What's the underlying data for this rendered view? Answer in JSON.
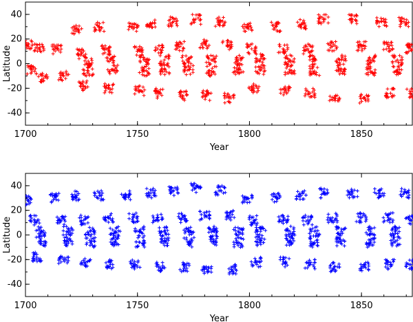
{
  "chart_data": [
    {
      "type": "scatter",
      "marker": "plus",
      "color": "#ff0000",
      "title": "",
      "xlabel": "Year",
      "ylabel": "Latitude",
      "xlim": [
        1700,
        1873
      ],
      "ylim": [
        -50,
        50
      ],
      "x_ticks": [
        1700,
        1750,
        1800,
        1850
      ],
      "y_ticks": [
        -40,
        -20,
        0,
        20,
        40
      ],
      "x_tick_labels": [
        "1700",
        "1750",
        "1800",
        "1850"
      ],
      "y_tick_labels": [
        "-40",
        "-20",
        "0",
        "20",
        "40"
      ],
      "grid": false,
      "legend": "none",
      "series": [
        {
          "points": [
            [
              1701,
              15
            ],
            [
              1703,
              -5
            ],
            [
              1706,
              12
            ],
            [
              1708,
              -12
            ],
            [
              1714,
              12
            ],
            [
              1717,
              -10
            ],
            [
              1723,
              28
            ],
            [
              1725,
              8
            ],
            [
              1726,
              -18
            ],
            [
              1728,
              2
            ],
            [
              1728,
              -6
            ],
            [
              1733,
              30
            ],
            [
              1736,
              12
            ],
            [
              1737,
              -20
            ],
            [
              1738,
              4
            ],
            [
              1739,
              -5
            ],
            [
              1748,
              30
            ],
            [
              1750,
              10
            ],
            [
              1751,
              -22
            ],
            [
              1753,
              3
            ],
            [
              1753,
              -6
            ],
            [
              1756,
              32
            ],
            [
              1759,
              12
            ],
            [
              1760,
              -24
            ],
            [
              1762,
              3
            ],
            [
              1762,
              -5
            ],
            [
              1766,
              34
            ],
            [
              1769,
              14
            ],
            [
              1770,
              -26
            ],
            [
              1772,
              3
            ],
            [
              1773,
              -5
            ],
            [
              1776,
              36
            ],
            [
              1780,
              16
            ],
            [
              1781,
              -26
            ],
            [
              1783,
              3
            ],
            [
              1783,
              -6
            ],
            [
              1787,
              34
            ],
            [
              1790,
              15
            ],
            [
              1791,
              -28
            ],
            [
              1795,
              3
            ],
            [
              1795,
              -5
            ],
            [
              1799,
              30
            ],
            [
              1801,
              12
            ],
            [
              1802,
              -20
            ],
            [
              1805,
              4
            ],
            [
              1805,
              -5
            ],
            [
              1812,
              30
            ],
            [
              1815,
              12
            ],
            [
              1816,
              -22
            ],
            [
              1818,
              3
            ],
            [
              1818,
              -5
            ],
            [
              1823,
              32
            ],
            [
              1826,
              12
            ],
            [
              1827,
              -24
            ],
            [
              1829,
              3
            ],
            [
              1829,
              -6
            ],
            [
              1833,
              36
            ],
            [
              1837,
              14
            ],
            [
              1838,
              -28
            ],
            [
              1841,
              3
            ],
            [
              1841,
              -5
            ],
            [
              1846,
              36
            ],
            [
              1850,
              14
            ],
            [
              1851,
              -28
            ],
            [
              1854,
              3
            ],
            [
              1854,
              -6
            ],
            [
              1859,
              34
            ],
            [
              1862,
              14
            ],
            [
              1863,
              -24
            ],
            [
              1866,
              3
            ],
            [
              1866,
              -5
            ],
            [
              1869,
              34
            ],
            [
              1872,
              12
            ],
            [
              1872,
              -24
            ]
          ]
        }
      ]
    },
    {
      "type": "scatter",
      "marker": "plus",
      "color": "#0000ff",
      "title": "",
      "xlabel": "Year",
      "ylabel": "Latitude",
      "xlim": [
        1700,
        1873
      ],
      "ylim": [
        -50,
        50
      ],
      "x_ticks": [
        1700,
        1750,
        1800,
        1850
      ],
      "y_ticks": [
        -40,
        -20,
        0,
        20,
        40
      ],
      "x_tick_labels": [
        "1700",
        "1750",
        "1800",
        "1850"
      ],
      "y_tick_labels": [
        "-40",
        "-20",
        "0",
        "20",
        "40"
      ],
      "grid": false,
      "legend": "none",
      "series": [
        {
          "points": [
            [
              1701,
              28
            ],
            [
              1704,
              12
            ],
            [
              1705,
              -18
            ],
            [
              1707,
              3
            ],
            [
              1707,
              -5
            ],
            [
              1713,
              30
            ],
            [
              1716,
              12
            ],
            [
              1717,
              -20
            ],
            [
              1719,
              3
            ],
            [
              1719,
              -5
            ],
            [
              1723,
              32
            ],
            [
              1726,
              12
            ],
            [
              1727,
              -22
            ],
            [
              1729,
              3
            ],
            [
              1729,
              -6
            ],
            [
              1733,
              32
            ],
            [
              1737,
              14
            ],
            [
              1738,
              -24
            ],
            [
              1740,
              3
            ],
            [
              1740,
              -5
            ],
            [
              1745,
              32
            ],
            [
              1748,
              14
            ],
            [
              1749,
              -24
            ],
            [
              1751,
              3
            ],
            [
              1751,
              -6
            ],
            [
              1756,
              34
            ],
            [
              1759,
              14
            ],
            [
              1760,
              -26
            ],
            [
              1762,
              3
            ],
            [
              1762,
              -5
            ],
            [
              1766,
              36
            ],
            [
              1770,
              14
            ],
            [
              1771,
              -26
            ],
            [
              1773,
              3
            ],
            [
              1773,
              -6
            ],
            [
              1776,
              38
            ],
            [
              1780,
              16
            ],
            [
              1781,
              -28
            ],
            [
              1784,
              3
            ],
            [
              1784,
              -5
            ],
            [
              1787,
              36
            ],
            [
              1791,
              16
            ],
            [
              1792,
              -28
            ],
            [
              1795,
              3
            ],
            [
              1795,
              -6
            ],
            [
              1799,
              30
            ],
            [
              1802,
              12
            ],
            [
              1803,
              -22
            ],
            [
              1805,
              3
            ],
            [
              1805,
              -5
            ],
            [
              1812,
              30
            ],
            [
              1815,
              12
            ],
            [
              1816,
              -22
            ],
            [
              1818,
              3
            ],
            [
              1818,
              -5
            ],
            [
              1823,
              32
            ],
            [
              1826,
              12
            ],
            [
              1827,
              -24
            ],
            [
              1829,
              3
            ],
            [
              1829,
              -6
            ],
            [
              1833,
              34
            ],
            [
              1837,
              14
            ],
            [
              1838,
              -26
            ],
            [
              1841,
              3
            ],
            [
              1841,
              -5
            ],
            [
              1846,
              34
            ],
            [
              1850,
              14
            ],
            [
              1851,
              -26
            ],
            [
              1854,
              3
            ],
            [
              1854,
              -6
            ],
            [
              1858,
              34
            ],
            [
              1862,
              14
            ],
            [
              1863,
              -24
            ],
            [
              1865,
              3
            ],
            [
              1865,
              -5
            ],
            [
              1869,
              34
            ],
            [
              1872,
              12
            ],
            [
              1872,
              -24
            ]
          ]
        }
      ]
    }
  ]
}
